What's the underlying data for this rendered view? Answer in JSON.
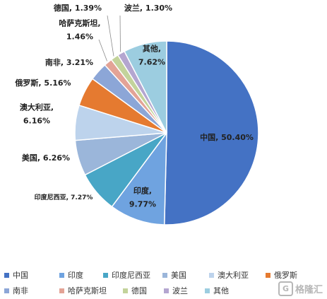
{
  "chart_data": {
    "type": "pie",
    "categories": [
      "中国",
      "印度",
      "印度尼西亚",
      "美国",
      "澳大利亚",
      "俄罗斯",
      "南非",
      "哈萨克斯坦",
      "德国",
      "波兰",
      "其他"
    ],
    "values": [
      50.4,
      9.77,
      7.27,
      6.26,
      6.16,
      5.16,
      3.21,
      1.46,
      1.39,
      1.3,
      7.62
    ],
    "colors": [
      "#4472C4",
      "#6FA3E0",
      "#48A6C6",
      "#9BB6DA",
      "#BDD3EC",
      "#E57A30",
      "#8CA6D7",
      "#E3A396",
      "#C3D39B",
      "#B4A6D0",
      "#9CCDE0"
    ],
    "data_labels": [
      "中国, 50.40%",
      "印度, 9.77%",
      "印度尼西亚, 7.27%",
      "美国, 6.26%",
      "澳大利亚, 6.16%",
      "俄罗斯, 5.16%",
      "南非, 3.21%",
      "哈萨克斯坦, 1.46%",
      "德国, 1.39%",
      "波兰, 1.30%",
      "其他, 7.62%"
    ],
    "start": "12 o'clock",
    "direction": "clockwise",
    "legend_position": "bottom"
  },
  "legend": {
    "rows": [
      [
        "中国",
        "印度",
        "印度尼西亚",
        "美国",
        "澳大利亚",
        "俄罗斯"
      ],
      [
        "南非",
        "哈萨克斯坦",
        "德国",
        "波兰",
        "其他"
      ]
    ]
  },
  "watermark": {
    "text": "格隆汇",
    "logo": "G"
  }
}
